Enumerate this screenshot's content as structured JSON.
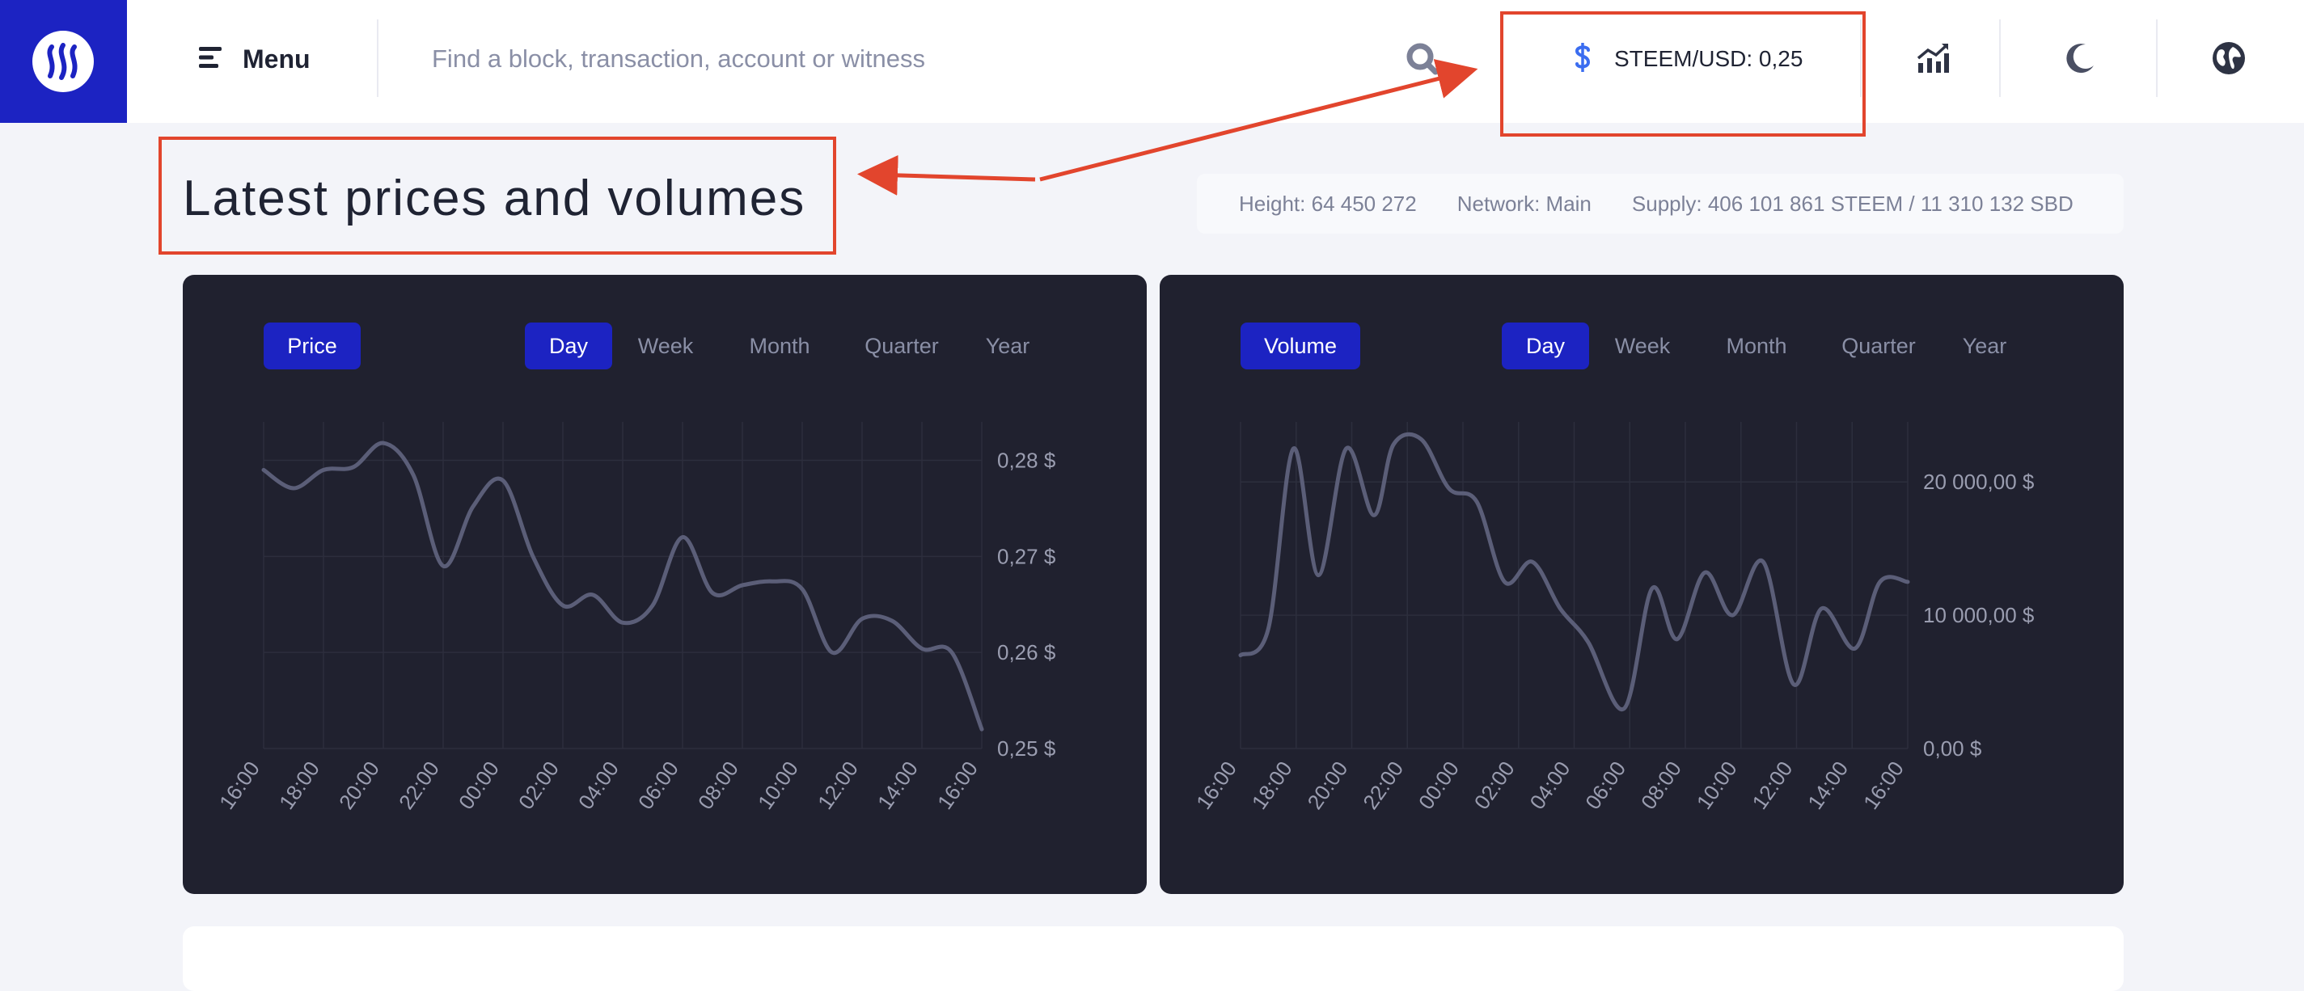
{
  "header": {
    "menu_label": "Menu",
    "search_placeholder": "Find a block, transaction, account or witness",
    "price_ticker": "STEEM/USD: 0,25",
    "icons": [
      "steem-logo-icon",
      "hamburger-icon",
      "search-icon",
      "dollar-icon",
      "chart-icon",
      "moon-icon",
      "globe-icon"
    ]
  },
  "page": {
    "title": "Latest prices and volumes",
    "stats": {
      "height": "Height: 64 450 272",
      "network": "Network: Main",
      "supply": "Supply: 406 101 861 STEEM / 11 310 132 SBD"
    }
  },
  "panels": {
    "price": {
      "label": "Price",
      "tabs": [
        "Day",
        "Week",
        "Month",
        "Quarter",
        "Year"
      ],
      "active_tab": "Day"
    },
    "volume": {
      "label": "Volume",
      "tabs": [
        "Day",
        "Week",
        "Month",
        "Quarter",
        "Year"
      ],
      "active_tab": "Day"
    }
  },
  "colors": {
    "brand": "#1c23c2",
    "panel_bg": "#20212f",
    "line": "#5b5e78",
    "annotation": "#e2452d"
  },
  "chart_data": [
    {
      "type": "line",
      "title": "Price",
      "categories": [
        "16:00",
        "18:00",
        "20:00",
        "22:00",
        "00:00",
        "02:00",
        "04:00",
        "06:00",
        "08:00",
        "10:00",
        "12:00",
        "14:00",
        "16:00"
      ],
      "x": [
        0,
        0.5,
        1,
        1.5,
        2,
        2.5,
        3,
        3.5,
        4,
        4.5,
        5,
        5.5,
        6,
        6.5,
        7,
        7.5,
        8,
        8.5,
        9,
        9.5,
        10,
        10.5,
        11,
        11.5,
        12
      ],
      "series": [
        {
          "values": [
            0.279,
            0.2771,
            0.279,
            0.2793,
            0.2818,
            0.2785,
            0.269,
            0.2752,
            0.2779,
            0.27,
            0.2649,
            0.266,
            0.2631,
            0.2649,
            0.272,
            0.2662,
            0.267,
            0.2674,
            0.2666,
            0.26,
            0.2635,
            0.2633,
            0.2604,
            0.26,
            0.252
          ]
        }
      ],
      "xlabel": "",
      "ylabel": "",
      "yticks": [
        "0,25 $",
        "0,26 $",
        "0,27 $",
        "0,28 $"
      ],
      "ylim": [
        0.25,
        0.284
      ],
      "grid": true
    },
    {
      "type": "line",
      "title": "Volume",
      "categories": [
        "16:00",
        "18:00",
        "20:00",
        "22:00",
        "00:00",
        "02:00",
        "04:00",
        "06:00",
        "08:00",
        "10:00",
        "12:00",
        "14:00",
        "16:00"
      ],
      "x": [
        0,
        0.5,
        0.95,
        1.4,
        1.9,
        2.4,
        2.75,
        3.25,
        3.75,
        4.25,
        4.75,
        5.25,
        5.75,
        6.25,
        6.9,
        7.4,
        7.85,
        8.35,
        8.85,
        9.4,
        9.95,
        10.45,
        11.05,
        11.5,
        12
      ],
      "series": [
        {
          "values": [
            7000,
            9000,
            22500,
            13000,
            22500,
            17500,
            22800,
            23200,
            19500,
            18500,
            12500,
            14000,
            10500,
            8000,
            3000,
            12000,
            8200,
            13200,
            10000,
            14000,
            4800,
            10500,
            7500,
            12500,
            12500
          ]
        }
      ],
      "xlabel": "",
      "ylabel": "",
      "yticks": [
        "0,00 $",
        "10 000,00 $",
        "20 000,00 $"
      ],
      "ylim": [
        0,
        24500
      ],
      "grid": true
    }
  ]
}
